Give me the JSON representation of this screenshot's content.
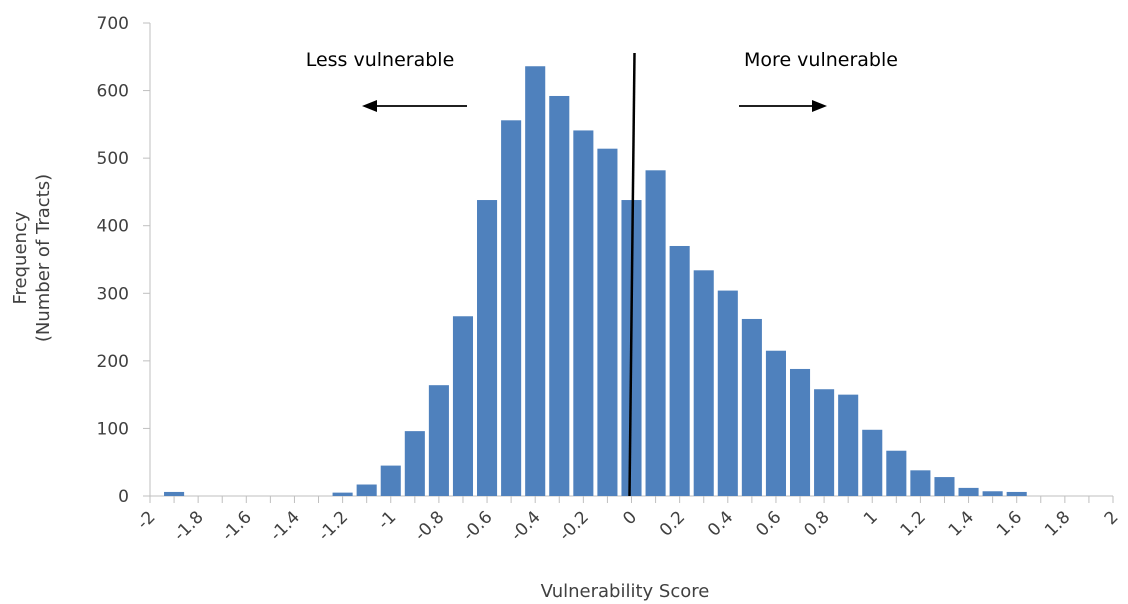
{
  "chart_data": {
    "type": "bar",
    "xlabel": "Vulnerability Score",
    "ylabel": [
      "Frequency",
      "(Number of Tracts)"
    ],
    "ylim": [
      0,
      700
    ],
    "yticks": [
      "0",
      "100",
      "200",
      "300",
      "400",
      "500",
      "600",
      "700"
    ],
    "xticks": [
      "-2",
      "-1.8",
      "-1.6",
      "-1.4",
      "-1.2",
      "-1",
      "-0.8",
      "-0.6",
      "-0.4",
      "-0.2",
      "0",
      "0.2",
      "0.4",
      "0.6",
      "0.8",
      "1",
      "1.2",
      "1.4",
      "1.6",
      "1.8",
      "2"
    ],
    "bins": [
      -1.9,
      -1.8,
      -1.7,
      -1.6,
      -1.5,
      -1.4,
      -1.3,
      -1.2,
      -1.1,
      -1.0,
      -0.9,
      -0.8,
      -0.7,
      -0.6,
      -0.5,
      -0.4,
      -0.3,
      -0.2,
      -0.1,
      0.0,
      0.1,
      0.2,
      0.3,
      0.4,
      0.5,
      0.6,
      0.7,
      0.8,
      0.9,
      1.0,
      1.1,
      1.2,
      1.3,
      1.4,
      1.5,
      1.6,
      1.7,
      1.8,
      1.9
    ],
    "values": [
      6,
      0,
      0,
      0,
      0,
      0,
      0,
      5,
      17,
      45,
      96,
      164,
      266,
      438,
      556,
      636,
      592,
      541,
      514,
      438,
      482,
      370,
      334,
      304,
      262,
      215,
      188,
      158,
      150,
      98,
      67,
      38,
      28,
      12,
      7,
      6,
      0,
      0,
      0
    ],
    "bar_color": "#4f81bd",
    "reference_line_x": 0,
    "annotations": {
      "left": "Less vulnerable",
      "right": "More vulnerable"
    },
    "grid": false,
    "legend": "none"
  }
}
